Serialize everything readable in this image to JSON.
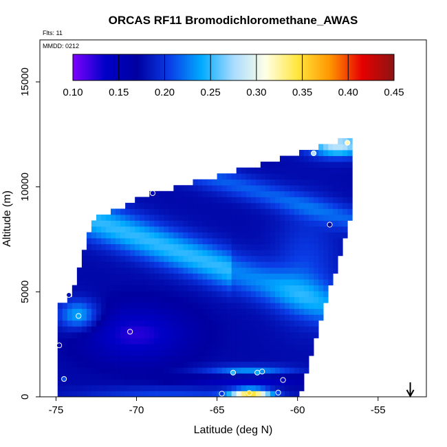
{
  "chart_data": {
    "type": "heatmap",
    "title": "ORCAS RF11 Bromodichloromethane_AWAS",
    "info_flights": "Flts: 11",
    "info_date": "MMDD: 0212",
    "xlabel": "Latitude (deg N)",
    "ylabel": "Altitude (m)",
    "xlim": [
      -76,
      -52
    ],
    "ylim": [
      0,
      17000
    ],
    "x_ticks": [
      -75,
      -70,
      -65,
      -60,
      -55
    ],
    "y_ticks": [
      0,
      5000,
      10000,
      15000
    ],
    "colorbar": {
      "range": [
        0.1,
        0.45
      ],
      "ticks": [
        0.1,
        0.15,
        0.2,
        0.25,
        0.3,
        0.35,
        0.4,
        0.45
      ],
      "stops": [
        "#7f00ff",
        "#0000c8",
        "#0000a0",
        "#0a3ce6",
        "#00aaff",
        "#a8dcff",
        "#ffffe6",
        "#ffe63c",
        "#ff9600",
        "#e60000",
        "#8c1414"
      ],
      "placement": "top"
    },
    "colors": {
      "field_low": "#0a1ed2",
      "field_mid": "#1e7dff",
      "field_light": "#c8e6ff",
      "point_stroke": "#ffffff"
    },
    "samples": [
      {
        "lat": -74.8,
        "alt": 2450,
        "value": 0.16
      },
      {
        "lat": -74.5,
        "alt": 850,
        "value": 0.21
      },
      {
        "lat": -74.2,
        "alt": 4850,
        "value": 0.18
      },
      {
        "lat": -73.6,
        "alt": 3850,
        "value": 0.24
      },
      {
        "lat": -70.4,
        "alt": 3100,
        "value": 0.12
      },
      {
        "lat": -69.0,
        "alt": 9700,
        "value": 0.15
      },
      {
        "lat": -64.7,
        "alt": 150,
        "value": 0.2
      },
      {
        "lat": -64.0,
        "alt": 1150,
        "value": 0.25
      },
      {
        "lat": -63.0,
        "alt": 180,
        "value": 0.35
      },
      {
        "lat": -62.5,
        "alt": 1150,
        "value": 0.24
      },
      {
        "lat": -62.2,
        "alt": 1200,
        "value": 0.23
      },
      {
        "lat": -61.2,
        "alt": 200,
        "value": 0.21
      },
      {
        "lat": -60.9,
        "alt": 800,
        "value": 0.14
      },
      {
        "lat": -59.0,
        "alt": 11600,
        "value": 0.28
      },
      {
        "lat": -58.0,
        "alt": 8200,
        "value": 0.17
      },
      {
        "lat": -56.9,
        "alt": 12100,
        "value": 0.32
      }
    ],
    "arrow": {
      "lat": -53.0,
      "direction": "down"
    }
  }
}
